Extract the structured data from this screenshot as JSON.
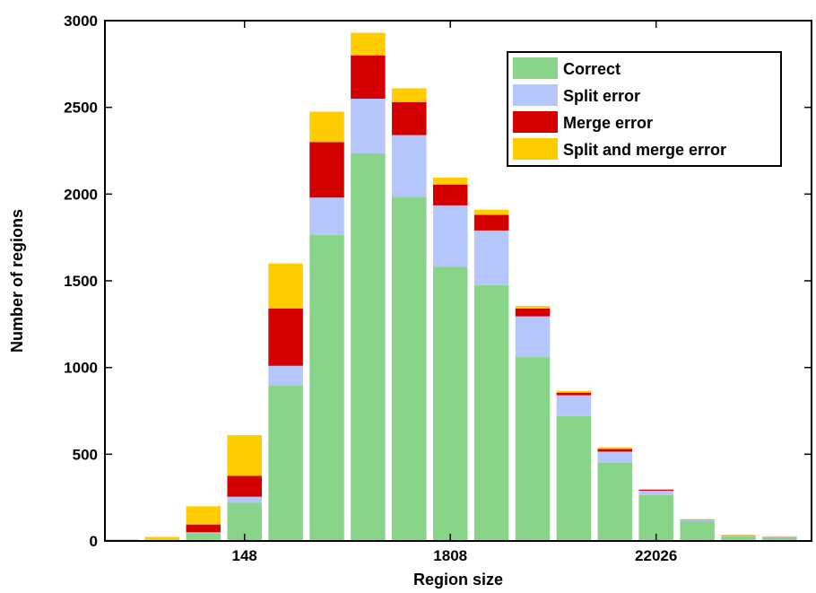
{
  "chart_data": {
    "type": "bar",
    "stacked": true,
    "xlabel": "Region size",
    "ylabel": "Number of regions",
    "ylim": [
      0,
      3000
    ],
    "yticks": [
      0,
      500,
      1000,
      1500,
      2000,
      2500,
      3000
    ],
    "xticks": [
      {
        "label": "148",
        "bin": 3
      },
      {
        "label": "1808",
        "bin": 8
      },
      {
        "label": "22026",
        "bin": 13
      }
    ],
    "bin_count": 17,
    "legend_position": "top-right",
    "series": [
      {
        "name": "Correct",
        "color": "#88d488",
        "values": [
          2,
          3,
          45,
          220,
          895,
          1765,
          2235,
          1985,
          1580,
          1475,
          1060,
          720,
          450,
          265,
          115,
          30,
          22
        ]
      },
      {
        "name": "Split error",
        "color": "#b4c6fc",
        "values": [
          0,
          0,
          5,
          35,
          115,
          215,
          315,
          355,
          355,
          315,
          235,
          120,
          65,
          25,
          5,
          2,
          2
        ]
      },
      {
        "name": "Merge error",
        "color": "#d40000",
        "values": [
          3,
          2,
          45,
          120,
          330,
          320,
          250,
          190,
          120,
          90,
          45,
          15,
          15,
          5,
          2,
          1,
          1
        ]
      },
      {
        "name": "Split and merge error",
        "color": "#ffcc00",
        "values": [
          5,
          18,
          105,
          235,
          260,
          175,
          130,
          80,
          40,
          30,
          15,
          10,
          10,
          5,
          3,
          2,
          2
        ]
      }
    ]
  }
}
